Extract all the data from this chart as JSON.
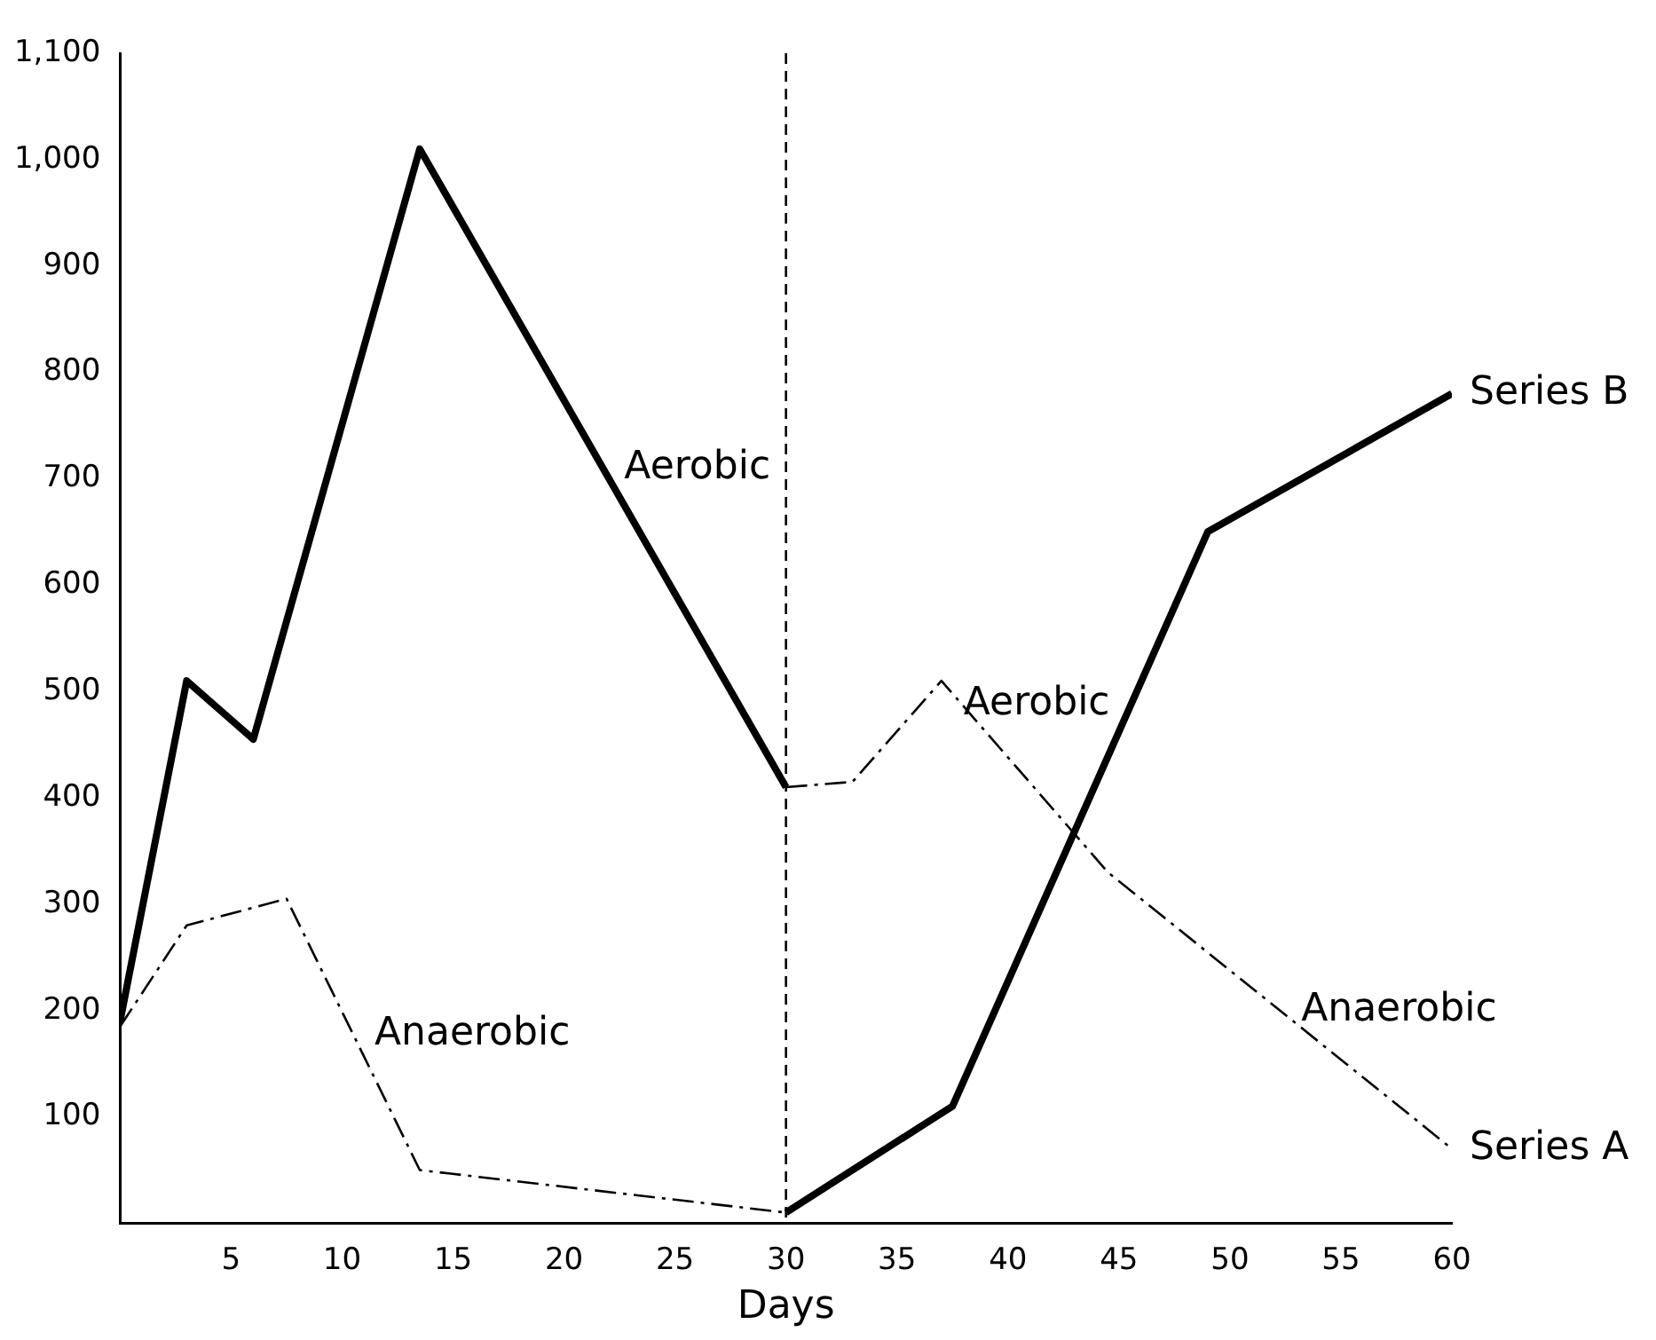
{
  "chart_data": {
    "type": "line",
    "xlabel": "Days",
    "xlim": [
      0,
      60
    ],
    "ylim": [
      0,
      1100
    ],
    "xticks": [
      5,
      10,
      15,
      20,
      25,
      30,
      35,
      40,
      45,
      50,
      55,
      60
    ],
    "yticks": [
      100,
      200,
      300,
      400,
      500,
      600,
      700,
      800,
      900,
      {
        "value": 1000,
        "label": "1,000"
      },
      {
        "value": 1100,
        "label": "1,100"
      }
    ],
    "grid": false,
    "legend": false,
    "marker": "none",
    "series": [
      {
        "name": "Aerobic",
        "color": "#000000",
        "line_style": "solid",
        "x": [
          0,
          3,
          6,
          13.5,
          30
        ],
        "values": [
          190,
          510,
          455,
          1010,
          410
        ]
      },
      {
        "name": "Anaerobic",
        "color": "#000000",
        "line_style": "dashed",
        "x": [
          0,
          3,
          7.5,
          13.5,
          30
        ],
        "values": [
          185,
          280,
          305,
          50,
          10
        ]
      },
      {
        "name": "Aerobic",
        "color": "#000000",
        "line_style": "solid",
        "x": [
          30,
          37.5,
          49,
          60
        ],
        "values": [
          10,
          110,
          650,
          780
        ]
      },
      {
        "name": "Anaerobic",
        "color": "#000000",
        "line_style": "dashed",
        "x": [
          30,
          33,
          37,
          44.5,
          60
        ],
        "values": [
          410,
          415,
          510,
          330,
          70
        ]
      }
    ],
    "ref_lines": [
      {
        "axis": "x",
        "value": 30,
        "line_style": "dashed",
        "color": "#000000"
      }
    ],
    "annotations": [
      {
        "text": "Series B",
        "x": 60,
        "y": 780
      },
      {
        "text": "Series A",
        "x": 60,
        "y": 70
      }
    ]
  }
}
